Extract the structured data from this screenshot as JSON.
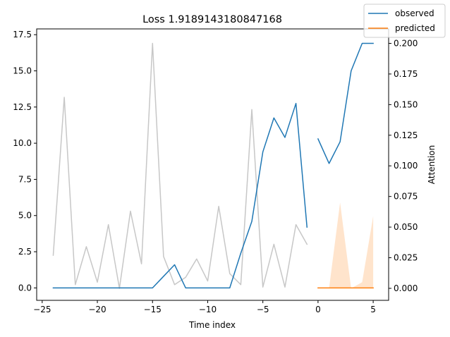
{
  "chart_data": {
    "type": "line",
    "title": "Loss 1.9189143180847168",
    "xlabel": "Time index",
    "ylabel": "",
    "y2label": "Attention",
    "xlim": [
      -25.5,
      6.4
    ],
    "ylim": [
      -0.86,
      17.9
    ],
    "y2lim": [
      -0.0098,
      0.2118
    ],
    "xticks": [
      -25,
      -20,
      -15,
      -10,
      -5,
      0,
      5
    ],
    "yticks": [
      0.0,
      2.5,
      5.0,
      7.5,
      10.0,
      12.5,
      15.0,
      17.5
    ],
    "y2ticks": [
      0.0,
      0.025,
      0.05,
      0.075,
      0.1,
      0.125,
      0.15,
      0.175,
      0.2
    ],
    "legend_position": "top-right",
    "grid": false,
    "series": [
      {
        "name": "observed",
        "axis": "left",
        "color": "#1f77b4",
        "segments": [
          {
            "x": [
              -24,
              -23,
              -22,
              -21,
              -20,
              -19,
              -18,
              -17,
              -16,
              -15,
              -14,
              -13,
              -12,
              -11,
              -10,
              -9,
              -8,
              -7,
              -6,
              -5,
              -4,
              -3,
              -2,
              -1
            ],
            "y": [
              0,
              0,
              0,
              0,
              0,
              0,
              0,
              0,
              0,
              0,
              0.8,
              1.6,
              0,
              0,
              0,
              0,
              0,
              2.4,
              4.6,
              9.4,
              11.75,
              10.4,
              12.75,
              4.2
            ]
          },
          {
            "x": [
              0,
              1,
              2,
              3,
              4,
              5
            ],
            "y": [
              10.3,
              8.6,
              10.1,
              15.0,
              16.9,
              16.9
            ]
          }
        ]
      },
      {
        "name": "predicted",
        "axis": "left",
        "color": "#ff7f0e",
        "segments": [
          {
            "x": [
              0,
              1,
              2,
              3,
              4,
              5
            ],
            "y": [
              0,
              0,
              0,
              0,
              0,
              0
            ]
          }
        ]
      },
      {
        "axis": "right",
        "color": "#c7c7c7",
        "segments": [
          {
            "x": [
              -24,
              -23,
              -22,
              -21,
              -20,
              -19,
              -18,
              -17,
              -16,
              -15,
              -14,
              -13,
              -12,
              -11,
              -10,
              -9,
              -8,
              -7,
              -6,
              -5,
              -4,
              -3,
              -2,
              -1
            ],
            "y": [
              0.027,
              0.156,
              0.003,
              0.034,
              0.005,
              0.052,
              0.0,
              0.063,
              0.02,
              0.2,
              0.026,
              0.003,
              0.009,
              0.024,
              0.006,
              0.067,
              0.012,
              0.003,
              0.146,
              0.001,
              0.036,
              0.001,
              0.052,
              0.036
            ]
          }
        ]
      },
      {
        "axis": "right",
        "type": "area",
        "color": "#ffe4cc",
        "segments": [
          {
            "x": [
              0,
              1,
              2,
              3,
              4,
              5
            ],
            "y": [
              0.0,
              0.0,
              0.07,
              0.0,
              0.005,
              0.059
            ]
          }
        ]
      }
    ]
  }
}
